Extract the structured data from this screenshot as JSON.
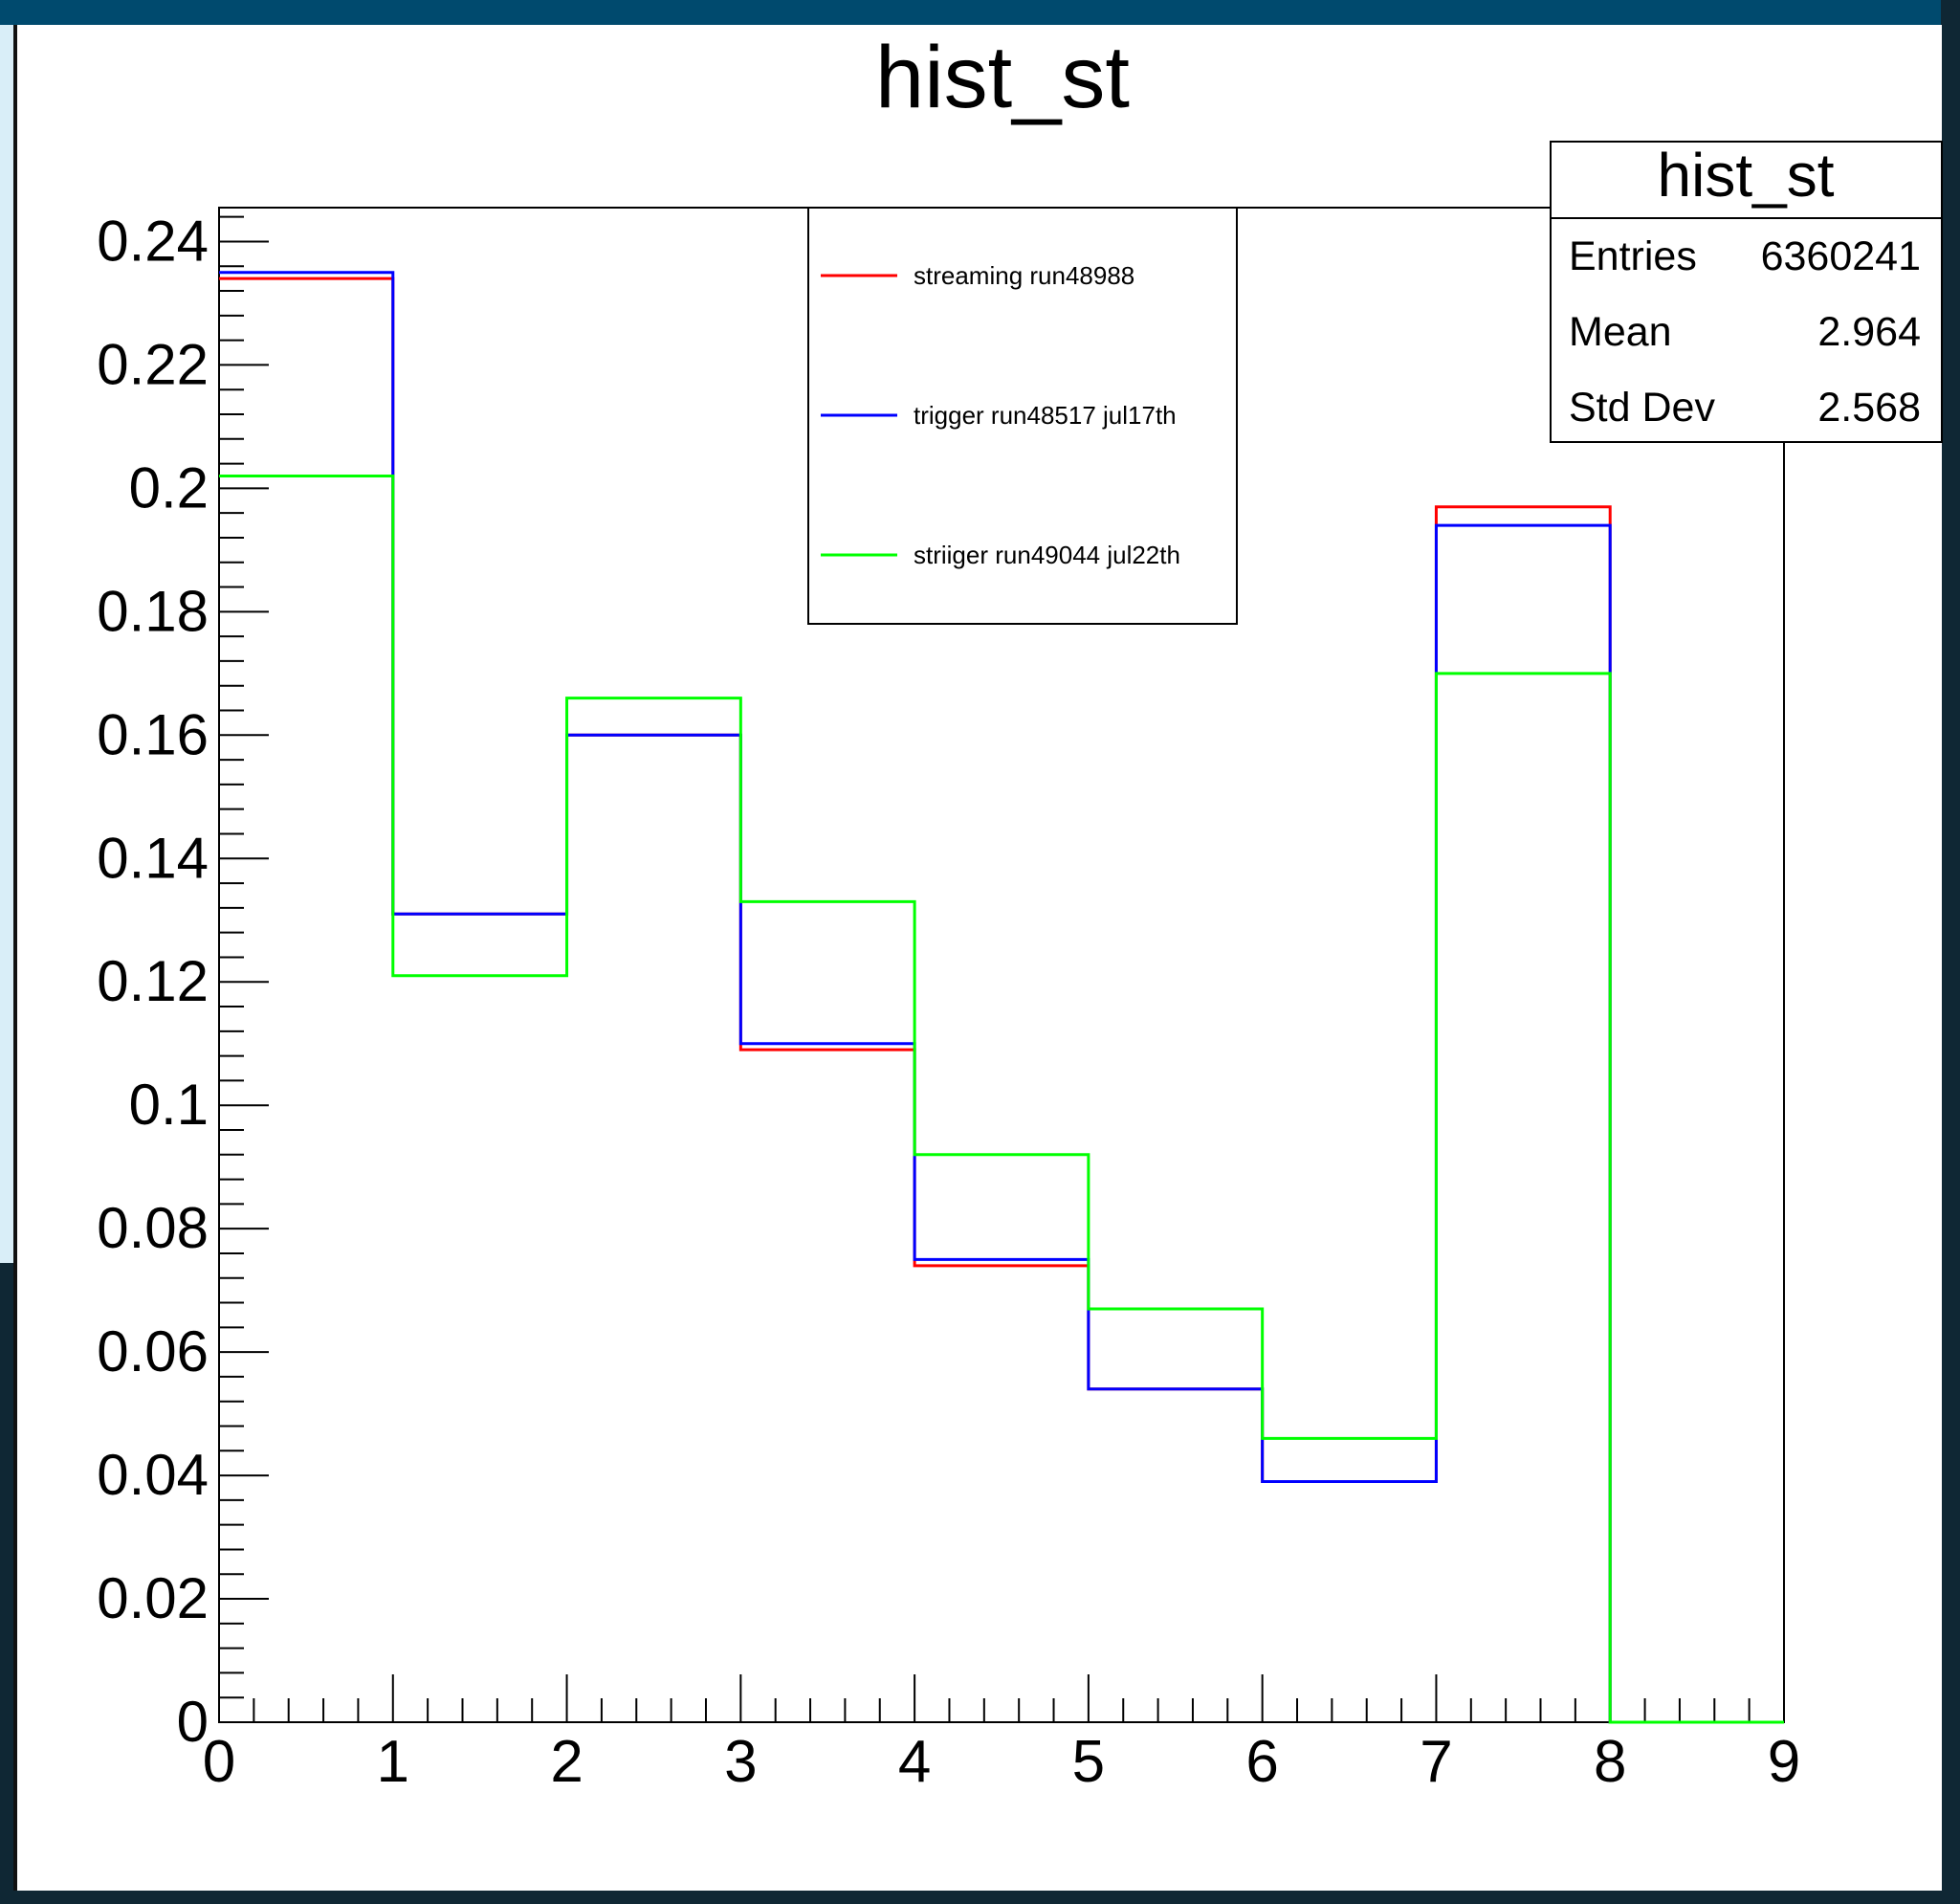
{
  "colors": {
    "streaming": "#ff0000",
    "trigger": "#0000ff",
    "striiger": "#00ff00",
    "frame_dark": "#0f2734",
    "frame_top": "#004a6e",
    "frame_light": "#d9eef8"
  },
  "chart_data": {
    "type": "line",
    "title": "hist_st",
    "xlabel": "",
    "ylabel": "",
    "xlim": [
      0,
      9
    ],
    "ylim": [
      0,
      0.24
    ],
    "x_ticks": [
      "0",
      "1",
      "2",
      "3",
      "4",
      "5",
      "6",
      "7",
      "8",
      "9"
    ],
    "y_ticks": [
      "0",
      "0.02",
      "0.04",
      "0.06",
      "0.08",
      "0.1",
      "0.12",
      "0.14",
      "0.16",
      "0.18",
      "0.2",
      "0.22",
      "0.24"
    ],
    "bin_edges": [
      0,
      1,
      2,
      3,
      4,
      5,
      6,
      7,
      8,
      9
    ],
    "series": [
      {
        "name": "streaming run48988",
        "color": "#ff0000",
        "values": [
          0.234,
          0.131,
          0.16,
          0.109,
          0.074,
          0.054,
          0.039,
          0.197,
          0.0
        ]
      },
      {
        "name": "trigger run48517 jul17th",
        "color": "#0000ff",
        "values": [
          0.235,
          0.131,
          0.16,
          0.11,
          0.075,
          0.054,
          0.039,
          0.194,
          0.0
        ]
      },
      {
        "name": "striiger run49044 jul22th",
        "color": "#00ff00",
        "values": [
          0.202,
          0.121,
          0.166,
          0.133,
          0.092,
          0.067,
          0.046,
          0.17,
          0.0
        ]
      }
    ],
    "legend_position": "top-center",
    "stats_box": {
      "title": "hist_st",
      "rows": [
        {
          "label": "Entries",
          "value": "6360241"
        },
        {
          "label": "Mean",
          "value": "2.964"
        },
        {
          "label": "Std Dev",
          "value": "2.568"
        }
      ]
    }
  }
}
